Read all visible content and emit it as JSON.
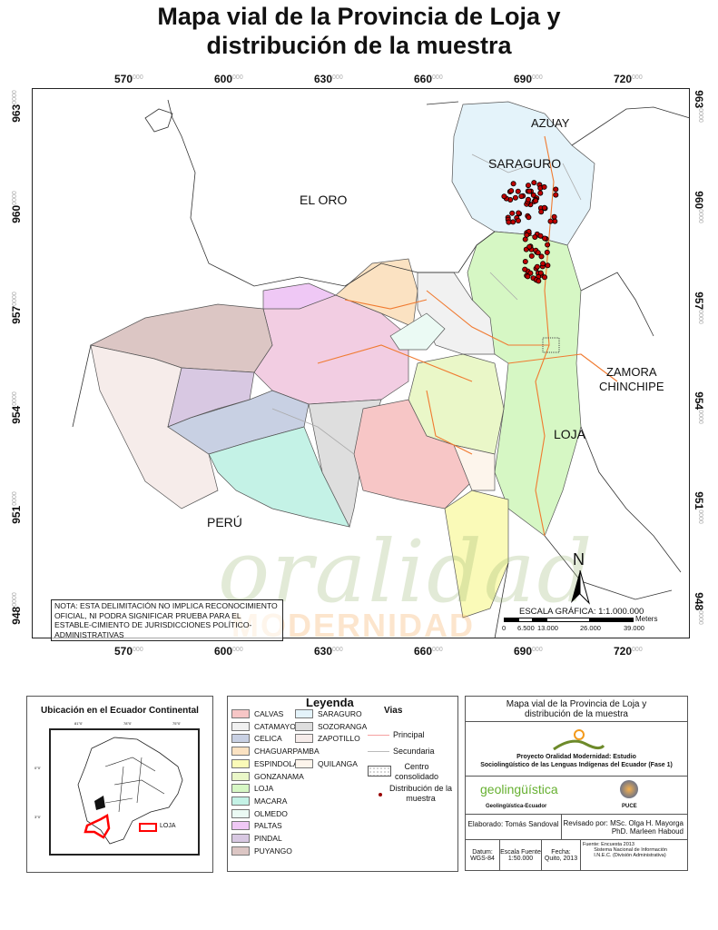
{
  "title": "Mapa vial de la Provincia de Loja y\ndistribución de la muestra",
  "map": {
    "x_ticks": [
      {
        "major": "570",
        "minor": "000"
      },
      {
        "major": "600",
        "minor": "000"
      },
      {
        "major": "630",
        "minor": "000"
      },
      {
        "major": "660",
        "minor": "000"
      },
      {
        "major": "690",
        "minor": "000"
      },
      {
        "major": "720",
        "minor": "000"
      }
    ],
    "y_ticks": [
      {
        "major": "963",
        "minor": "0000"
      },
      {
        "major": "960",
        "minor": "0000"
      },
      {
        "major": "957",
        "minor": "0000"
      },
      {
        "major": "954",
        "minor": "0000"
      },
      {
        "major": "951",
        "minor": "0000"
      },
      {
        "major": "948",
        "minor": "0000"
      }
    ],
    "region_labels": {
      "azuay": "AZUAY",
      "saraguro": "SARAGURO",
      "el_oro": "EL ORO",
      "zamora": "ZAMORA\nCHINCHIPE",
      "loja": "LOJA",
      "peru": "PERÚ"
    },
    "note": "NOTA: ESTA DELIMITACIÓN NO IMPLICA RECONOCIMIENTO OFICIAL, NI PODRA SIGNIFICAR PRUEBA PARA EL ESTABLE-CIMIENTO DE JURISDICCIONES POLÍTICO- ADMINISTRATIVAS",
    "north_label": "N",
    "scale": {
      "title": "ESCALA GRÁFICA: 1:1.000.000",
      "unit": "Meters",
      "labels": [
        "0",
        "6.500",
        "13.000",
        "26.000",
        "39.000"
      ]
    },
    "watermark": {
      "line1": "oralidad",
      "line2": "MODERNIDAD"
    },
    "colors": {
      "road_principal": "#f07a30",
      "sample_point": "#c00000"
    }
  },
  "inset": {
    "title": "Ubicación en el Ecuador Continental",
    "top_ticks": [
      "81°0'",
      "78°0'",
      "75°0'"
    ],
    "side_ticks": [
      "0°0'",
      "3°0'"
    ],
    "legend_label": "LOJA",
    "highlight_color": "#ff0000"
  },
  "legend": {
    "title": "Leyenda",
    "cantons": [
      {
        "name": "CALVAS",
        "color": "#f7c6c6"
      },
      {
        "name": "CATAMAYO",
        "color": "#f1f1f1"
      },
      {
        "name": "CELICA",
        "color": "#c8d0e3"
      },
      {
        "name": "CHAGUARPAMBA",
        "color": "#fbe2c2"
      },
      {
        "name": "ESPINDOLA",
        "color": "#fafab8"
      },
      {
        "name": "GONZANAMA",
        "color": "#eaf7c8"
      },
      {
        "name": "LOJA",
        "color": "#d6f7c4"
      },
      {
        "name": "MACARA",
        "color": "#c4f2e6"
      },
      {
        "name": "OLMEDO",
        "color": "#ebfaf4"
      },
      {
        "name": "PALTAS",
        "color": "#efc8f5"
      },
      {
        "name": "PINDAL",
        "color": "#d8c8e2"
      },
      {
        "name": "PUYANGO",
        "color": "#dcc6c4"
      },
      {
        "name": "SARAGURO",
        "color": "#e4f3fa"
      },
      {
        "name": "SOZORANGA",
        "color": "#dedede"
      },
      {
        "name": "ZAPOTILLO",
        "color": "#f6ecea"
      },
      {
        "name": "QUILANGA",
        "color": "#fdf5ec"
      }
    ],
    "vias_title": "Vias",
    "principal": "Principal",
    "secundaria": "Secundaria",
    "centro": "Centro\nconsolidado",
    "muestra": "Distribución de la\nmuestra"
  },
  "infobox": {
    "title": "Mapa vial de la Provincia de Loja y\ndistribución de la muestra",
    "logo_text": "Oralidad Modernidad",
    "project": "Proyecto Oralidad Modernidad: Estudio\nSociolingüístico de las Lenguas Indígenas del Ecuador  (Fase 1)",
    "geo_logo": "geolingüística",
    "geo_label": "Geolingüística-Ecuador",
    "puce_label": "PUCE",
    "elaborado": "Elaborado: Tomás Sandoval",
    "revisado": "Revisado por: MSc.  Olga H. Mayorga\nPhD. Marleen Haboud",
    "datum": "Datum:\nWGS-84",
    "escala": "Escala Fuente\n1:50.000",
    "fecha": "Fecha:\nQuito, 2013",
    "fuente": "Fuente: Encuesta 2013\n        Sistema Nacional de Información\n        I.N.E.C. (División Administrativa)"
  }
}
